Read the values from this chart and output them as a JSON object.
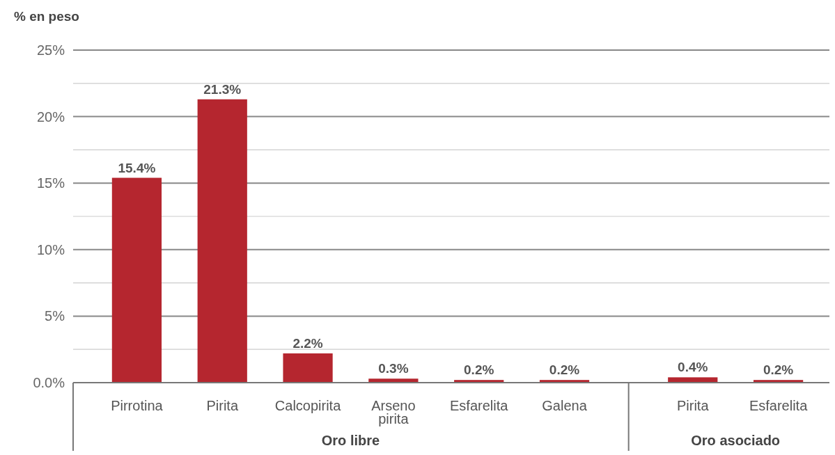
{
  "chart_data": {
    "type": "bar",
    "ylabel": "% en peso",
    "categories": [
      "Pirrotina",
      "Pirita",
      "Calcopirita",
      "Arseno pirita",
      "Esfarelita",
      "Galena",
      null,
      "Pirita",
      "Esfarelita"
    ],
    "values": [
      15.4,
      21.3,
      2.2,
      0.3,
      0.2,
      0.2,
      null,
      0.4,
      0.2
    ],
    "value_labels": [
      "15.4%",
      "21.3%",
      "2.2%",
      "0.3%",
      "0.2%",
      "0.2%",
      null,
      "0.4%",
      "0.2%"
    ],
    "color": "#b5262f",
    "ylim": [
      0,
      25
    ],
    "yticks": [
      {
        "value": 0,
        "label": "0.0%"
      },
      {
        "value": 2.5,
        "label": null
      },
      {
        "value": 5,
        "label": "5%"
      },
      {
        "value": 7.5,
        "label": null
      },
      {
        "value": 10,
        "label": "10%"
      },
      {
        "value": 12.5,
        "label": null
      },
      {
        "value": 15,
        "label": "15%"
      },
      {
        "value": 17.5,
        "label": null
      },
      {
        "value": 20,
        "label": "20%"
      },
      {
        "value": 22.5,
        "label": null
      },
      {
        "value": 25,
        "label": "25%"
      }
    ],
    "grid": true,
    "annotations": [
      "Oro libre",
      "Oro asociado"
    ]
  }
}
